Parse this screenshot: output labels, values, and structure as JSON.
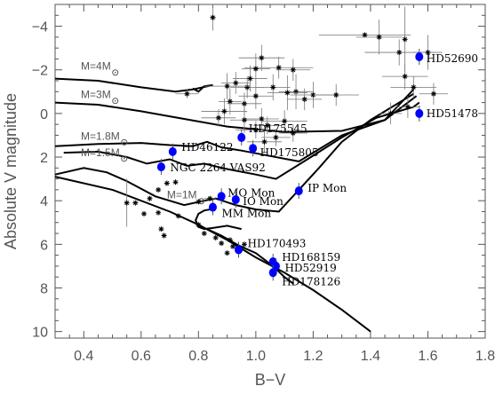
{
  "chart_data": {
    "type": "scatter",
    "xlabel": "B−V",
    "ylabel": "Absolute V magnitude",
    "xlim": [
      0.3,
      1.8
    ],
    "ylim": [
      10.3,
      -5
    ],
    "y_inverted": true,
    "xticks": [
      "0.4",
      "0.6",
      "0.8",
      "1.0",
      "1.2",
      "1.4",
      "1.6",
      "1.8"
    ],
    "yticks": [
      "−4",
      "−2",
      "0",
      "2",
      "4",
      "6",
      "8",
      "10"
    ],
    "grid": false,
    "colors": {
      "named": "#0000ff",
      "field": "#000000",
      "axis": "#555555"
    },
    "named_stars": [
      {
        "name": "HD52690",
        "x": 1.57,
        "y": -2.6,
        "labelDx": 8,
        "labelDy": 6
      },
      {
        "name": "HD51478",
        "x": 1.57,
        "y": 0.0,
        "labelDx": 8,
        "labelDy": 4
      },
      {
        "name": "HD175545",
        "x": 0.95,
        "y": 1.1,
        "labelDx": 8,
        "labelDy": -6
      },
      {
        "name": "HD175805",
        "x": 0.99,
        "y": 1.6,
        "labelDx": 8,
        "labelDy": 9
      },
      {
        "name": "HD46122",
        "x": 0.71,
        "y": 1.75,
        "labelDx": 10,
        "labelDy": -1
      },
      {
        "name": "NGC 2264 VAS92",
        "x": 0.67,
        "y": 2.45,
        "labelDx": 10,
        "labelDy": 5
      },
      {
        "name": "IP Mon",
        "x": 1.15,
        "y": 3.55,
        "labelDx": 10,
        "labelDy": 1
      },
      {
        "name": "MO Mon",
        "x": 0.88,
        "y": 3.8,
        "labelDx": 7,
        "labelDy": 0
      },
      {
        "name": "IO Mon",
        "x": 0.93,
        "y": 3.95,
        "labelDx": 8,
        "labelDy": 6
      },
      {
        "name": "MM Mon",
        "x": 0.85,
        "y": 4.3,
        "labelDx": 10,
        "labelDy": 11
      },
      {
        "name": "HD170493",
        "x": 0.94,
        "y": 6.25,
        "labelDx": 10,
        "labelDy": -3
      },
      {
        "name": "HD168159",
        "x": 1.06,
        "y": 6.8,
        "labelDx": 10,
        "labelDy": -1
      },
      {
        "name": "HD52919",
        "x": 1.07,
        "y": 7.0,
        "labelDx": 10,
        "labelDy": 6
      },
      {
        "name": "HD178126",
        "x": 1.06,
        "y": 7.3,
        "labelDx": 10,
        "labelDy": 14
      }
    ],
    "field_stars": [
      {
        "x": 0.85,
        "y": -4.4,
        "ex": 0.01,
        "ey": 0.6
      },
      {
        "x": 1.38,
        "y": -3.6,
        "ex": 0.16,
        "ey": 0.0
      },
      {
        "x": 1.43,
        "y": -3.5,
        "ex": 0.08,
        "ey": 0.8
      },
      {
        "x": 1.52,
        "y": -3.4,
        "ex": 0.0,
        "ey": 1.5
      },
      {
        "x": 1.5,
        "y": -2.8,
        "ex": 0.12,
        "ey": 0.6
      },
      {
        "x": 1.6,
        "y": -2.8,
        "ex": 0.05,
        "ey": 0.8
      },
      {
        "x": 1.02,
        "y": -2.55,
        "ex": 0.08,
        "ey": 0.6
      },
      {
        "x": 1.08,
        "y": -2.1,
        "ex": 0.12,
        "ey": 0.5
      },
      {
        "x": 1.0,
        "y": -2.05,
        "ex": 0.05,
        "ey": 0.7
      },
      {
        "x": 1.13,
        "y": -2.0,
        "ex": 0.06,
        "ey": 0.5
      },
      {
        "x": 0.98,
        "y": -1.6,
        "ex": 0.06,
        "ey": 0.6
      },
      {
        "x": 1.52,
        "y": -1.7,
        "ex": 0.08,
        "ey": 0.6
      },
      {
        "x": 1.55,
        "y": -1.2,
        "ex": 0.08,
        "ey": 0.5
      },
      {
        "x": 0.93,
        "y": -1.4,
        "ex": 0.05,
        "ey": 0.5
      },
      {
        "x": 0.97,
        "y": -1.2,
        "ex": 0.06,
        "ey": 0.5
      },
      {
        "x": 1.06,
        "y": -1.2,
        "ex": 0.06,
        "ey": 0.6
      },
      {
        "x": 1.14,
        "y": -1.0,
        "ex": 0.06,
        "ey": 0.8
      },
      {
        "x": 0.9,
        "y": -1.25,
        "ex": 0.08,
        "ey": 0.6
      },
      {
        "x": 1.11,
        "y": -0.95,
        "ex": 0.07,
        "ey": 0.8
      },
      {
        "x": 1.2,
        "y": -0.85,
        "ex": 0.08,
        "ey": 0.6
      },
      {
        "x": 1.28,
        "y": -0.85,
        "ex": 0.08,
        "ey": 0.5
      },
      {
        "x": 1.0,
        "y": -0.8,
        "ex": 0.06,
        "ey": 0.6
      },
      {
        "x": 0.91,
        "y": -0.55,
        "ex": 0.04,
        "ey": 0.6
      },
      {
        "x": 0.96,
        "y": -0.45,
        "ex": 0.06,
        "ey": 0.5
      },
      {
        "x": 1.17,
        "y": -0.65,
        "ex": 0.06,
        "ey": 0.5
      },
      {
        "x": 1.62,
        "y": -0.9,
        "ex": 0.05,
        "ey": 0.5
      },
      {
        "x": 1.53,
        "y": -0.3,
        "ex": 0.04,
        "ey": 0.5
      },
      {
        "x": 1.47,
        "y": 0.0,
        "ex": 0.04,
        "ey": 0.5
      },
      {
        "x": 0.76,
        "y": -0.9,
        "ex": 0.04,
        "ey": 0.2
      },
      {
        "x": 0.89,
        "y": -0.1,
        "ex": 0.08,
        "ey": 0.6
      },
      {
        "x": 0.87,
        "y": 0.2,
        "ex": 0.06,
        "ey": 0.4
      },
      {
        "x": 1.02,
        "y": 0.25,
        "ex": 0.06,
        "ey": 0.5
      },
      {
        "x": 1.04,
        "y": 0.55,
        "ex": 0.05,
        "ey": 0.4
      },
      {
        "x": 0.96,
        "y": 0.3,
        "ex": 0.05,
        "ey": 0.6
      },
      {
        "x": 1.1,
        "y": 0.35,
        "ex": 0.08,
        "ey": 0.5
      },
      {
        "x": 1.13,
        "y": 0.9,
        "ex": 0.05,
        "ey": 0.4
      },
      {
        "x": 1.0,
        "y": 0.75,
        "ex": 0.07,
        "ey": 0.4
      },
      {
        "x": 1.07,
        "y": 1.1,
        "ex": 0.05,
        "ey": 0.4
      },
      {
        "x": 1.03,
        "y": 1.3,
        "ex": 0.06,
        "ey": 0.5
      },
      {
        "x": 0.55,
        "y": 4.1,
        "ex": 0.0,
        "ey": 1.1
      },
      {
        "x": 0.58,
        "y": 4.1,
        "ex": 0.01,
        "ey": 0.0
      },
      {
        "x": 0.61,
        "y": 4.6,
        "ex": 0.0,
        "ey": 0.0
      },
      {
        "x": 0.63,
        "y": 3.9,
        "ex": 0.0,
        "ey": 0.0
      },
      {
        "x": 0.66,
        "y": 4.55,
        "ex": 0.0,
        "ey": 0.0
      },
      {
        "x": 0.69,
        "y": 3.2,
        "ex": 0.0,
        "ey": 0.0
      },
      {
        "x": 0.72,
        "y": 3.15,
        "ex": 0.0,
        "ey": 0.0
      },
      {
        "x": 0.73,
        "y": 4.7,
        "ex": 0.0,
        "ey": 0.0
      },
      {
        "x": 0.67,
        "y": 5.3,
        "ex": 0.0,
        "ey": 0.0
      },
      {
        "x": 0.68,
        "y": 5.6,
        "ex": 0.0,
        "ey": 0.0
      },
      {
        "x": 0.66,
        "y": 3.5,
        "ex": 0.0,
        "ey": 0.0
      },
      {
        "x": 0.8,
        "y": 5.1,
        "ex": 0.0,
        "ey": 0.0
      },
      {
        "x": 0.82,
        "y": 5.5,
        "ex": 0.0,
        "ey": 0.0
      },
      {
        "x": 0.86,
        "y": 5.7,
        "ex": 0.0,
        "ey": 0.0
      },
      {
        "x": 0.88,
        "y": 5.95,
        "ex": 0.0,
        "ey": 0.0
      },
      {
        "x": 0.9,
        "y": 6.4,
        "ex": 0.0,
        "ey": 0.0
      },
      {
        "x": 0.91,
        "y": 5.8,
        "ex": 0.0,
        "ey": 0.0
      },
      {
        "x": 0.96,
        "y": 6.0,
        "ex": 0.0,
        "ey": 0.0
      },
      {
        "x": 0.92,
        "y": 6.1,
        "ex": 0.0,
        "ey": 0.0
      },
      {
        "x": 0.84,
        "y": 3.9,
        "ex": 0.02,
        "ey": 0.0
      },
      {
        "x": 0.8,
        "y": 4.05,
        "ex": 0.0,
        "ey": 0.0
      }
    ],
    "tracks": [
      {
        "label": "M=4M",
        "labelX": 0.39,
        "labelY": -2.0,
        "points": [
          [
            0.3,
            -1.6
          ],
          [
            0.45,
            -1.5
          ],
          [
            0.6,
            -1.2
          ],
          [
            0.72,
            -1.0
          ],
          [
            0.78,
            -1.1
          ],
          [
            0.85,
            -1.3
          ],
          [
            0.82,
            -1.25
          ],
          [
            0.8,
            -1.0
          ],
          [
            0.78,
            -1.15
          ]
        ]
      },
      {
        "label": "M=3M",
        "labelX": 0.39,
        "labelY": -0.7,
        "points": [
          [
            0.3,
            -0.5
          ],
          [
            0.45,
            -0.4
          ],
          [
            0.6,
            -0.1
          ],
          [
            0.75,
            0.25
          ],
          [
            0.9,
            0.6
          ],
          [
            1.1,
            0.85
          ],
          [
            1.3,
            0.8
          ],
          [
            1.45,
            0.3
          ],
          [
            1.55,
            -1.1
          ]
        ]
      },
      {
        "label": "M=1.8M",
        "labelX": 0.39,
        "labelY": 1.2,
        "points": [
          [
            0.3,
            1.5
          ],
          [
            0.45,
            1.4
          ],
          [
            0.6,
            1.35
          ],
          [
            0.7,
            1.45
          ],
          [
            0.78,
            1.5
          ],
          [
            0.83,
            1.3
          ],
          [
            0.88,
            1.55
          ],
          [
            0.95,
            1.7
          ],
          [
            1.05,
            1.95
          ],
          [
            1.15,
            2.2
          ],
          [
            1.3,
            1.0
          ],
          [
            1.45,
            0.3
          ],
          [
            1.56,
            -0.8
          ]
        ]
      },
      {
        "label": "M=1.5M",
        "labelX": 0.39,
        "labelY": 1.95,
        "points": [
          [
            0.33,
            1.8
          ],
          [
            0.45,
            1.75
          ],
          [
            0.55,
            2.0
          ],
          [
            0.62,
            2.3
          ],
          [
            0.7,
            2.1
          ],
          [
            0.76,
            2.4
          ],
          [
            0.82,
            2.3
          ],
          [
            0.9,
            2.55
          ],
          [
            1.0,
            2.8
          ],
          [
            1.07,
            3.0
          ],
          [
            1.18,
            2.1
          ],
          [
            1.3,
            1.1
          ],
          [
            1.42,
            0.2
          ],
          [
            1.55,
            -0.3
          ],
          [
            1.57,
            -0.5
          ]
        ]
      },
      {
        "label": "M=1M",
        "labelX": 0.69,
        "labelY": 3.9,
        "points": [
          [
            0.3,
            2.8
          ],
          [
            0.4,
            2.5
          ],
          [
            0.48,
            2.7
          ],
          [
            0.55,
            3.1
          ],
          [
            0.65,
            3.8
          ],
          [
            0.75,
            4.2
          ],
          [
            0.82,
            4.0
          ],
          [
            0.86,
            3.9
          ],
          [
            0.93,
            4.2
          ],
          [
            1.0,
            4.4
          ],
          [
            1.08,
            4.5
          ],
          [
            1.15,
            3.5
          ],
          [
            1.22,
            2.5
          ],
          [
            1.3,
            1.3
          ],
          [
            1.4,
            0.3
          ],
          [
            1.5,
            -0.5
          ],
          [
            1.55,
            -0.9
          ]
        ]
      },
      {
        "label": "",
        "labelX": 0,
        "labelY": 0,
        "points": [
          [
            0.3,
            2.9
          ],
          [
            0.5,
            3.5
          ],
          [
            0.7,
            4.5
          ],
          [
            0.8,
            5.1
          ],
          [
            0.9,
            5.8
          ],
          [
            1.0,
            6.6
          ],
          [
            1.1,
            7.3
          ],
          [
            1.2,
            8.1
          ],
          [
            1.3,
            9.0
          ],
          [
            1.4,
            10.0
          ]
        ]
      },
      {
        "label": "",
        "labelX": 0,
        "labelY": 0,
        "points": [
          [
            0.95,
            5.3
          ],
          [
            0.9,
            5.15
          ],
          [
            0.85,
            5.25
          ],
          [
            0.82,
            5.3
          ],
          [
            0.8,
            5.2
          ],
          [
            0.79,
            4.9
          ],
          [
            0.8,
            4.6
          ],
          [
            0.82,
            4.45
          ],
          [
            0.86,
            4.35
          ]
        ]
      },
      {
        "label": "",
        "labelX": 0,
        "labelY": 0,
        "points": [
          [
            0.83,
            5.3
          ],
          [
            0.88,
            5.6
          ],
          [
            0.94,
            6.05
          ],
          [
            1.0,
            6.4
          ],
          [
            1.06,
            7.0
          ],
          [
            1.1,
            7.5
          ],
          [
            1.13,
            7.8
          ]
        ]
      }
    ]
  }
}
